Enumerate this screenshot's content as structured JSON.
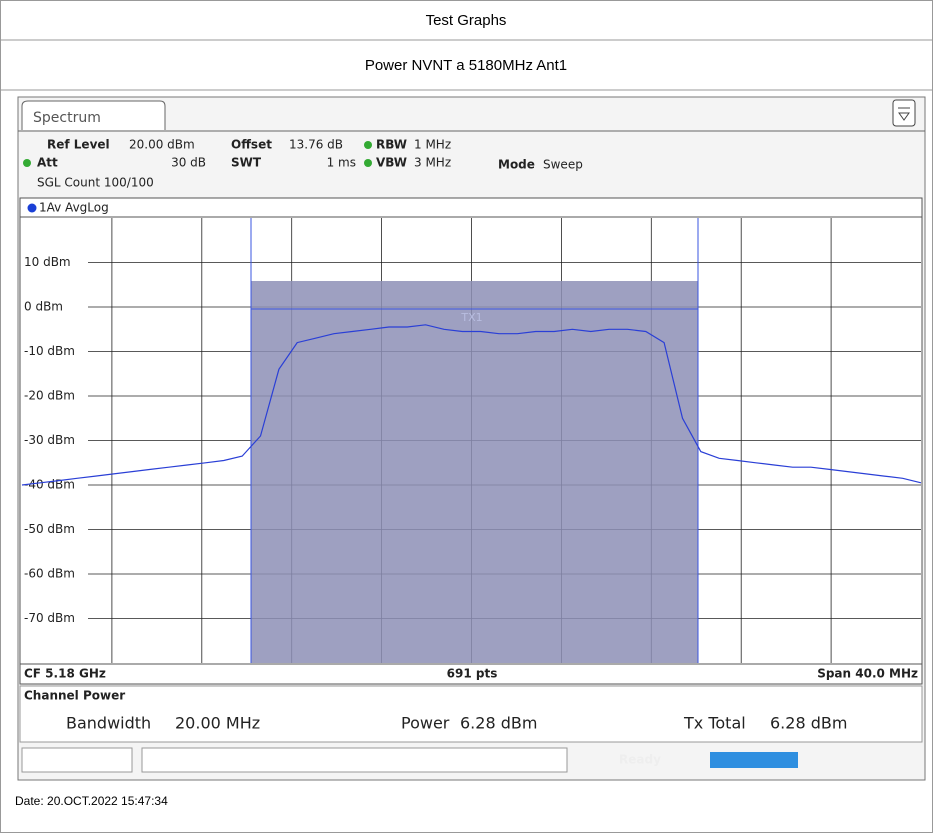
{
  "header": {
    "title": "Test Graphs",
    "subtitle": "Power NVNT a 5180MHz Ant1"
  },
  "screen": {
    "tab": "Spectrum",
    "settings": {
      "ref_level_label": "Ref Level",
      "ref_level": "20.00 dBm",
      "offset_label": "Offset",
      "offset": "13.76 dB",
      "rbw_label": "RBW",
      "rbw": "1 MHz",
      "att_label": "Att",
      "att": "30 dB",
      "swt_label": "SWT",
      "swt": "1 ms",
      "vbw_label": "VBW",
      "vbw": "3 MHz",
      "mode_label": "Mode",
      "mode": "Sweep",
      "count": "SGL Count 100/100"
    },
    "trace_label": "1Av AvgLog",
    "marker": "TX1",
    "footer": {
      "center_freq": "CF 5.18 GHz",
      "points": "691 pts",
      "span": "Span 40.0 MHz"
    },
    "channel_power": {
      "title": "Channel Power",
      "bandwidth_label": "Bandwidth",
      "bandwidth": "20.00 MHz",
      "power_label": "Power",
      "power": "6.28 dBm",
      "tx_total_label": "Tx Total",
      "tx_total": "6.28 dBm"
    },
    "status": "Ready"
  },
  "date": "Date: 20.OCT.2022  15:47:34",
  "chart_data": {
    "type": "line",
    "color": "#2a3fd6",
    "ylim": [
      -80,
      20
    ],
    "yticks": [
      {
        "value": 10,
        "label": "10 dBm"
      },
      {
        "value": 0,
        "label": "0 dBm"
      },
      {
        "value": -10,
        "label": "-10 dBm"
      },
      {
        "value": -20,
        "label": "-20 dBm"
      },
      {
        "value": -30,
        "label": "-30 dBm"
      },
      {
        "value": -40,
        "label": "-40 dBm"
      },
      {
        "value": -50,
        "label": "-50 dBm"
      },
      {
        "value": -60,
        "label": "-60 dBm"
      },
      {
        "value": -70,
        "label": "-70 dBm"
      }
    ],
    "grid": true,
    "values": [
      -40,
      -39.5,
      -39,
      -38.5,
      -38,
      -37.5,
      -37,
      -36.5,
      -36,
      -35.5,
      -35,
      -34.5,
      -33.5,
      -29,
      -14,
      -8,
      -7,
      -6,
      -5.5,
      -5,
      -4.5,
      -4.5,
      -4,
      -5,
      -5.5,
      -5.5,
      -6,
      -6,
      -5.5,
      -5.5,
      -5,
      -5.5,
      -5,
      -5,
      -5.5,
      -8,
      -25,
      -32.5,
      -34,
      -34.5,
      -35,
      -35.5,
      -36,
      -36,
      -36.5,
      -37,
      -37.5,
      -38,
      -38.5,
      -39.5
    ]
  }
}
